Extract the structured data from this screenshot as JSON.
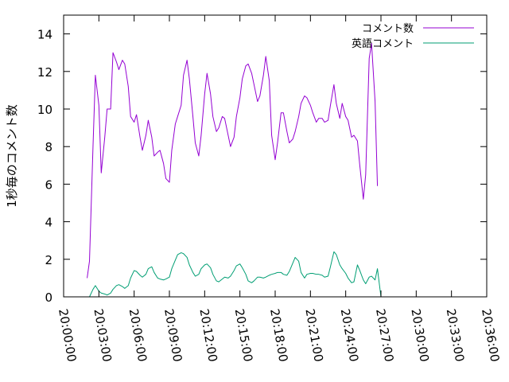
{
  "chart_data": {
    "type": "line",
    "title": "",
    "xlabel": "",
    "ylabel": "1秒毎のコメント数",
    "ylim": [
      0,
      15
    ],
    "yticks": [
      0,
      2,
      4,
      6,
      8,
      10,
      12,
      14
    ],
    "xlim": [
      "20:00:00",
      "20:36:00"
    ],
    "xticks": [
      "20:00:00",
      "20:03:00",
      "20:06:00",
      "20:09:00",
      "20:12:00",
      "20:15:00",
      "20:18:00",
      "20:21:00",
      "20:24:00",
      "20:27:00",
      "20:30:00",
      "20:33:00",
      "20:36:00"
    ],
    "grid": false,
    "legend_position": "top-right",
    "series": [
      {
        "name": "コメント数",
        "color": "#9400d3",
        "points": [
          [
            "20:02:00",
            1.0
          ],
          [
            "20:02:12",
            1.9
          ],
          [
            "20:02:30",
            8.0
          ],
          [
            "20:02:42",
            11.8
          ],
          [
            "20:03:00",
            10.2
          ],
          [
            "20:03:12",
            6.6
          ],
          [
            "20:03:30",
            8.5
          ],
          [
            "20:03:42",
            10.0
          ],
          [
            "20:04:00",
            10.0
          ],
          [
            "20:04:12",
            13.0
          ],
          [
            "20:04:30",
            12.5
          ],
          [
            "20:04:42",
            12.1
          ],
          [
            "20:05:00",
            12.6
          ],
          [
            "20:05:12",
            12.4
          ],
          [
            "20:05:30",
            11.2
          ],
          [
            "20:05:42",
            9.6
          ],
          [
            "20:06:00",
            9.3
          ],
          [
            "20:06:12",
            9.7
          ],
          [
            "20:06:30",
            8.5
          ],
          [
            "20:06:42",
            7.8
          ],
          [
            "20:07:00",
            8.6
          ],
          [
            "20:07:12",
            9.4
          ],
          [
            "20:07:30",
            8.5
          ],
          [
            "20:07:42",
            7.5
          ],
          [
            "20:08:00",
            7.7
          ],
          [
            "20:08:12",
            7.8
          ],
          [
            "20:08:30",
            7.1
          ],
          [
            "20:08:42",
            6.3
          ],
          [
            "20:09:00",
            6.1
          ],
          [
            "20:09:12",
            7.8
          ],
          [
            "20:09:30",
            9.2
          ],
          [
            "20:09:42",
            9.6
          ],
          [
            "20:10:00",
            10.2
          ],
          [
            "20:10:12",
            11.8
          ],
          [
            "20:10:30",
            12.6
          ],
          [
            "20:10:42",
            11.6
          ],
          [
            "20:11:00",
            9.6
          ],
          [
            "20:11:12",
            8.2
          ],
          [
            "20:11:30",
            7.5
          ],
          [
            "20:11:42",
            8.6
          ],
          [
            "20:12:00",
            10.8
          ],
          [
            "20:12:12",
            11.9
          ],
          [
            "20:12:30",
            10.8
          ],
          [
            "20:12:42",
            9.6
          ],
          [
            "20:13:00",
            8.8
          ],
          [
            "20:13:12",
            9.0
          ],
          [
            "20:13:30",
            9.6
          ],
          [
            "20:13:42",
            9.5
          ],
          [
            "20:14:00",
            8.6
          ],
          [
            "20:14:12",
            8.0
          ],
          [
            "20:14:30",
            8.5
          ],
          [
            "20:14:42",
            9.6
          ],
          [
            "20:15:00",
            10.6
          ],
          [
            "20:15:12",
            11.6
          ],
          [
            "20:15:30",
            12.3
          ],
          [
            "20:15:42",
            12.4
          ],
          [
            "20:16:00",
            11.9
          ],
          [
            "20:16:12",
            11.3
          ],
          [
            "20:16:30",
            10.4
          ],
          [
            "20:16:42",
            10.7
          ],
          [
            "20:17:00",
            11.8
          ],
          [
            "20:17:12",
            12.8
          ],
          [
            "20:17:30",
            11.5
          ],
          [
            "20:17:42",
            8.6
          ],
          [
            "20:18:00",
            7.3
          ],
          [
            "20:18:12",
            8.2
          ],
          [
            "20:18:30",
            9.8
          ],
          [
            "20:18:42",
            9.8
          ],
          [
            "20:19:00",
            8.8
          ],
          [
            "20:19:12",
            8.2
          ],
          [
            "20:19:30",
            8.4
          ],
          [
            "20:19:42",
            8.8
          ],
          [
            "20:20:00",
            9.6
          ],
          [
            "20:20:12",
            10.3
          ],
          [
            "20:20:30",
            10.7
          ],
          [
            "20:20:42",
            10.6
          ],
          [
            "20:21:00",
            10.2
          ],
          [
            "20:21:12",
            9.8
          ],
          [
            "20:21:30",
            9.3
          ],
          [
            "20:21:42",
            9.5
          ],
          [
            "20:22:00",
            9.5
          ],
          [
            "20:22:12",
            9.3
          ],
          [
            "20:22:30",
            9.4
          ],
          [
            "20:22:42",
            10.2
          ],
          [
            "20:23:00",
            11.3
          ],
          [
            "20:23:12",
            10.3
          ],
          [
            "20:23:30",
            9.5
          ],
          [
            "20:23:42",
            10.3
          ],
          [
            "20:24:00",
            9.6
          ],
          [
            "20:24:12",
            9.4
          ],
          [
            "20:24:30",
            8.5
          ],
          [
            "20:24:42",
            8.6
          ],
          [
            "20:25:00",
            8.3
          ],
          [
            "20:25:12",
            7.0
          ],
          [
            "20:25:30",
            5.2
          ],
          [
            "20:25:42",
            6.5
          ],
          [
            "20:26:00",
            12.7
          ],
          [
            "20:26:12",
            13.5
          ],
          [
            "20:26:30",
            10.4
          ],
          [
            "20:26:42",
            5.9
          ]
        ]
      },
      {
        "name": "英語コメント",
        "color": "#009e73",
        "points": [
          [
            "20:02:12",
            0.0
          ],
          [
            "20:02:30",
            0.4
          ],
          [
            "20:02:42",
            0.6
          ],
          [
            "20:03:00",
            0.3
          ],
          [
            "20:03:12",
            0.2
          ],
          [
            "20:03:30",
            0.15
          ],
          [
            "20:03:42",
            0.1
          ],
          [
            "20:04:00",
            0.2
          ],
          [
            "20:04:12",
            0.4
          ],
          [
            "20:04:30",
            0.6
          ],
          [
            "20:04:42",
            0.65
          ],
          [
            "20:05:00",
            0.55
          ],
          [
            "20:05:12",
            0.45
          ],
          [
            "20:05:30",
            0.6
          ],
          [
            "20:05:42",
            1.0
          ],
          [
            "20:06:00",
            1.4
          ],
          [
            "20:06:12",
            1.35
          ],
          [
            "20:06:30",
            1.15
          ],
          [
            "20:06:42",
            1.05
          ],
          [
            "20:07:00",
            1.2
          ],
          [
            "20:07:12",
            1.5
          ],
          [
            "20:07:30",
            1.6
          ],
          [
            "20:07:42",
            1.3
          ],
          [
            "20:08:00",
            1.0
          ],
          [
            "20:08:12",
            0.95
          ],
          [
            "20:08:30",
            0.9
          ],
          [
            "20:08:42",
            0.95
          ],
          [
            "20:09:00",
            1.05
          ],
          [
            "20:09:12",
            1.5
          ],
          [
            "20:09:30",
            1.95
          ],
          [
            "20:09:42",
            2.25
          ],
          [
            "20:10:00",
            2.35
          ],
          [
            "20:10:12",
            2.3
          ],
          [
            "20:10:30",
            2.1
          ],
          [
            "20:10:42",
            1.7
          ],
          [
            "20:11:00",
            1.3
          ],
          [
            "20:11:12",
            1.1
          ],
          [
            "20:11:30",
            1.2
          ],
          [
            "20:11:42",
            1.5
          ],
          [
            "20:12:00",
            1.7
          ],
          [
            "20:12:12",
            1.75
          ],
          [
            "20:12:30",
            1.55
          ],
          [
            "20:12:42",
            1.2
          ],
          [
            "20:13:00",
            0.85
          ],
          [
            "20:13:12",
            0.8
          ],
          [
            "20:13:30",
            0.95
          ],
          [
            "20:13:42",
            1.05
          ],
          [
            "20:14:00",
            1.0
          ],
          [
            "20:14:12",
            1.1
          ],
          [
            "20:14:30",
            1.4
          ],
          [
            "20:14:42",
            1.65
          ],
          [
            "20:15:00",
            1.75
          ],
          [
            "20:15:12",
            1.55
          ],
          [
            "20:15:30",
            1.2
          ],
          [
            "20:15:42",
            0.85
          ],
          [
            "20:16:00",
            0.75
          ],
          [
            "20:16:12",
            0.85
          ],
          [
            "20:16:30",
            1.05
          ],
          [
            "20:16:42",
            1.05
          ],
          [
            "20:17:00",
            1.0
          ],
          [
            "20:17:12",
            1.05
          ],
          [
            "20:17:30",
            1.15
          ],
          [
            "20:17:42",
            1.2
          ],
          [
            "20:18:00",
            1.25
          ],
          [
            "20:18:12",
            1.3
          ],
          [
            "20:18:30",
            1.3
          ],
          [
            "20:18:42",
            1.2
          ],
          [
            "20:19:00",
            1.15
          ],
          [
            "20:19:12",
            1.35
          ],
          [
            "20:19:30",
            1.8
          ],
          [
            "20:19:42",
            2.1
          ],
          [
            "20:20:00",
            1.9
          ],
          [
            "20:20:12",
            1.3
          ],
          [
            "20:20:30",
            1.0
          ],
          [
            "20:20:42",
            1.2
          ],
          [
            "20:21:00",
            1.25
          ],
          [
            "20:21:12",
            1.25
          ],
          [
            "20:21:30",
            1.2
          ],
          [
            "20:21:42",
            1.2
          ],
          [
            "20:22:00",
            1.15
          ],
          [
            "20:22:12",
            1.05
          ],
          [
            "20:22:30",
            1.1
          ],
          [
            "20:22:42",
            1.6
          ],
          [
            "20:23:00",
            2.4
          ],
          [
            "20:23:12",
            2.25
          ],
          [
            "20:23:30",
            1.7
          ],
          [
            "20:23:42",
            1.5
          ],
          [
            "20:24:00",
            1.25
          ],
          [
            "20:24:12",
            1.0
          ],
          [
            "20:24:30",
            0.75
          ],
          [
            "20:24:42",
            0.8
          ],
          [
            "20:25:00",
            1.7
          ],
          [
            "20:25:12",
            1.4
          ],
          [
            "20:25:30",
            0.9
          ],
          [
            "20:25:42",
            0.7
          ],
          [
            "20:26:00",
            1.05
          ],
          [
            "20:26:12",
            1.1
          ],
          [
            "20:26:30",
            0.9
          ],
          [
            "20:26:42",
            1.5
          ],
          [
            "20:27:00",
            0.0
          ]
        ]
      }
    ]
  }
}
